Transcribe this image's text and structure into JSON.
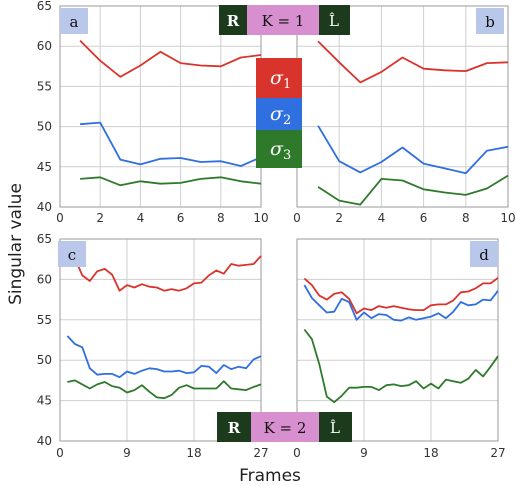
{
  "figure": {
    "y_axis_label": "Singular value",
    "x_axis_label": "Frames",
    "legend": [
      {
        "symbol": "σ",
        "sub": "1",
        "color": "#d9342b"
      },
      {
        "symbol": "σ",
        "sub": "2",
        "color": "#2f6fe0"
      },
      {
        "symbol": "σ",
        "sub": "3",
        "color": "#2e7a2a"
      }
    ],
    "caption_top": {
      "left": "R",
      "middle": "K = 1",
      "right": "L̂"
    },
    "caption_bottom": {
      "left": "R",
      "middle": "K = 2",
      "right": "L̂"
    },
    "caption_colors": {
      "dark": "#1c3a1c",
      "middle": "#d88fd0"
    }
  },
  "chart_data": [
    {
      "panel": "a",
      "type": "line",
      "xlim": [
        0,
        10
      ],
      "ylim": [
        40,
        65
      ],
      "xticks": [
        0,
        2,
        4,
        6,
        8,
        10
      ],
      "yticks": [
        40,
        45,
        50,
        55,
        60,
        65
      ],
      "x": [
        1,
        2,
        3,
        4,
        5,
        6,
        7,
        8,
        9,
        10
      ],
      "series": [
        {
          "name": "σ1",
          "values": [
            60.7,
            58.2,
            56.2,
            57.6,
            59.3,
            57.9,
            57.6,
            57.5,
            58.6,
            58.9
          ]
        },
        {
          "name": "σ2",
          "values": [
            50.3,
            50.5,
            45.9,
            45.3,
            46.0,
            46.1,
            45.6,
            45.7,
            45.1,
            46.2
          ]
        },
        {
          "name": "σ3",
          "values": [
            43.5,
            43.7,
            42.7,
            43.2,
            42.9,
            43.0,
            43.5,
            43.7,
            43.2,
            42.9
          ]
        }
      ]
    },
    {
      "panel": "b",
      "type": "line",
      "xlim": [
        0,
        10
      ],
      "ylim": [
        40,
        65
      ],
      "xticks": [
        0,
        2,
        4,
        6,
        8,
        10
      ],
      "yticks": [
        40,
        45,
        50,
        55,
        60,
        65
      ],
      "x": [
        1,
        2,
        3,
        4,
        5,
        6,
        7,
        8,
        9,
        10
      ],
      "series": [
        {
          "name": "σ1",
          "values": [
            60.6,
            58.0,
            55.5,
            56.8,
            58.6,
            57.2,
            57.0,
            56.9,
            57.9,
            58.0
          ]
        },
        {
          "name": "σ2",
          "values": [
            50.1,
            45.7,
            44.3,
            45.6,
            47.4,
            45.4,
            44.8,
            44.2,
            47.0,
            47.5
          ]
        },
        {
          "name": "σ3",
          "values": [
            42.5,
            40.8,
            40.3,
            43.5,
            43.3,
            42.2,
            41.8,
            41.5,
            42.3,
            43.9
          ]
        }
      ]
    },
    {
      "panel": "c",
      "type": "line",
      "xlim": [
        0,
        27
      ],
      "ylim": [
        40,
        65
      ],
      "xticks": [
        0,
        9,
        18,
        27
      ],
      "yticks": [
        40,
        45,
        50,
        55,
        60,
        65
      ],
      "x": [
        1,
        2,
        3,
        4,
        5,
        6,
        7,
        8,
        9,
        10,
        11,
        12,
        13,
        14,
        15,
        16,
        17,
        18,
        19,
        20,
        21,
        22,
        23,
        24,
        25,
        26,
        27
      ],
      "series": [
        {
          "name": "σ1",
          "values": [
            62.8,
            62.6,
            60.5,
            59.8,
            61.0,
            61.3,
            60.6,
            58.6,
            59.3,
            59.0,
            59.4,
            59.1,
            59.0,
            58.6,
            58.8,
            58.6,
            58.9,
            59.5,
            59.6,
            60.5,
            61.1,
            60.7,
            61.9,
            61.7,
            61.8,
            61.9,
            62.9
          ]
        },
        {
          "name": "σ2",
          "values": [
            53.0,
            52.0,
            51.6,
            49.0,
            48.2,
            48.3,
            48.3,
            47.9,
            48.6,
            48.3,
            48.7,
            49.0,
            48.9,
            48.6,
            48.6,
            48.7,
            48.4,
            48.5,
            49.3,
            49.2,
            48.4,
            49.4,
            48.9,
            49.2,
            49.0,
            50.1,
            50.5
          ]
        },
        {
          "name": "σ3",
          "values": [
            47.3,
            47.5,
            47.0,
            46.5,
            47.0,
            47.3,
            46.8,
            46.6,
            46.0,
            46.3,
            46.9,
            46.1,
            45.4,
            45.3,
            45.7,
            46.6,
            46.9,
            46.5,
            46.5,
            46.5,
            46.5,
            47.4,
            46.5,
            46.4,
            46.3,
            46.7,
            47.0
          ]
        }
      ]
    },
    {
      "panel": "d",
      "type": "line",
      "xlim": [
        0,
        27
      ],
      "ylim": [
        40,
        65
      ],
      "xticks": [
        0,
        9,
        18,
        27
      ],
      "yticks": [
        40,
        45,
        50,
        55,
        60,
        65
      ],
      "x": [
        1,
        2,
        3,
        4,
        5,
        6,
        7,
        8,
        9,
        10,
        11,
        12,
        13,
        14,
        15,
        16,
        17,
        18,
        19,
        20,
        21,
        22,
        23,
        24,
        25,
        26,
        27
      ],
      "series": [
        {
          "name": "σ1",
          "values": [
            60.1,
            59.3,
            58.0,
            57.5,
            58.2,
            58.4,
            57.6,
            55.8,
            56.4,
            56.2,
            56.7,
            56.5,
            56.7,
            56.5,
            56.3,
            56.2,
            56.2,
            56.8,
            56.9,
            56.9,
            57.4,
            58.4,
            58.5,
            58.9,
            59.5,
            59.5,
            60.2
          ]
        },
        {
          "name": "σ2",
          "values": [
            59.3,
            57.7,
            56.8,
            55.9,
            56.0,
            57.6,
            57.2,
            55.0,
            55.9,
            55.2,
            55.7,
            55.6,
            55.0,
            54.9,
            55.3,
            55.0,
            55.2,
            55.4,
            55.8,
            55.2,
            56.0,
            57.2,
            56.8,
            56.9,
            57.5,
            57.4,
            58.6
          ]
        },
        {
          "name": "σ3",
          "values": [
            53.8,
            52.6,
            49.5,
            45.5,
            44.8,
            45.6,
            46.6,
            46.6,
            46.7,
            46.7,
            46.3,
            46.9,
            47.0,
            46.8,
            46.9,
            47.4,
            46.5,
            47.1,
            46.5,
            47.6,
            47.4,
            47.2,
            47.7,
            48.8,
            48.0,
            49.2,
            50.5
          ]
        }
      ]
    }
  ]
}
